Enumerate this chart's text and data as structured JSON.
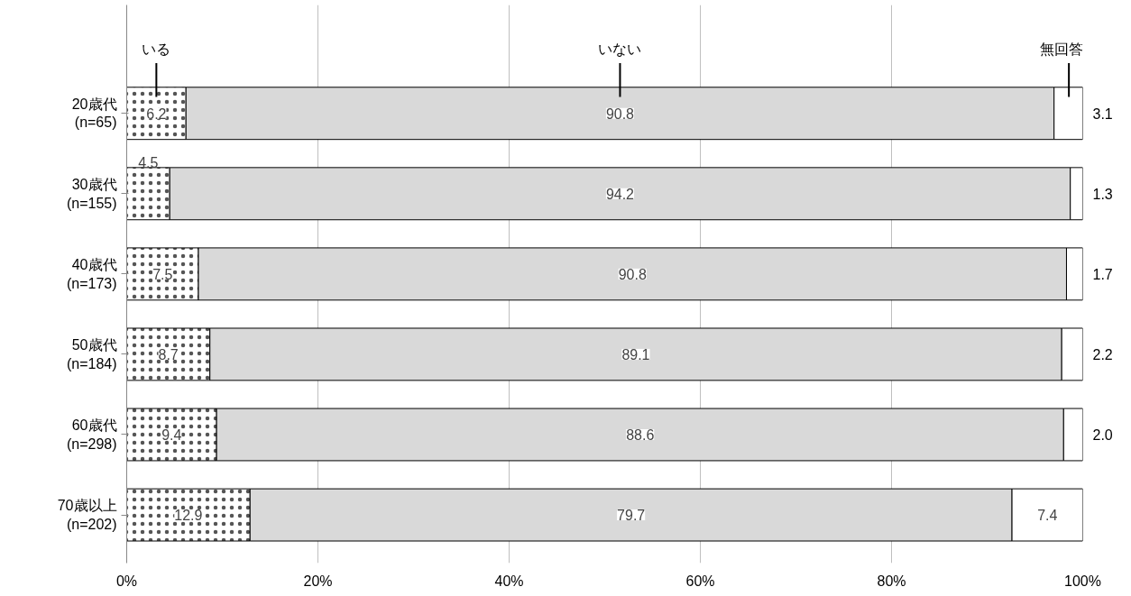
{
  "chart_data": {
    "type": "bar",
    "orientation": "horizontal",
    "stacked": true,
    "categories": [
      "20歳代\n(n=65)",
      "30歳代\n(n=155)",
      "40歳代\n(n=173)",
      "50歳代\n(n=184)",
      "60歳代\n(n=298)",
      "70歳以上\n(n=202)"
    ],
    "series": [
      {
        "name": "いる",
        "color": "#ffffff",
        "values": [
          6.2,
          4.5,
          7.5,
          8.7,
          9.4,
          12.9
        ],
        "value_labels": [
          "6.2",
          "4.5",
          "7.5",
          "8.7",
          "9.4",
          "12.9"
        ]
      },
      {
        "name": "いない",
        "color": "#d9d9d9",
        "values": [
          90.8,
          94.2,
          90.8,
          89.1,
          88.6,
          79.7
        ],
        "value_labels": [
          "90.8",
          "94.2",
          "90.8",
          "89.1",
          "88.6",
          "79.7"
        ]
      },
      {
        "name": "無回答",
        "color": "#ffffff",
        "values": [
          3.1,
          1.3,
          1.7,
          2.2,
          2.0,
          7.4
        ],
        "value_labels": [
          "3.1",
          "1.3",
          "1.7",
          "2.2",
          "2.0",
          "7.4"
        ]
      }
    ],
    "xlim": [
      0,
      100
    ],
    "xticks": [
      {
        "value": 0,
        "label": "0%"
      },
      {
        "value": 20,
        "label": "20%"
      },
      {
        "value": 40,
        "label": "40%"
      },
      {
        "value": 60,
        "label": "60%"
      },
      {
        "value": 80,
        "label": "80%"
      },
      {
        "value": 100,
        "label": "100%"
      }
    ],
    "grid": "x"
  }
}
